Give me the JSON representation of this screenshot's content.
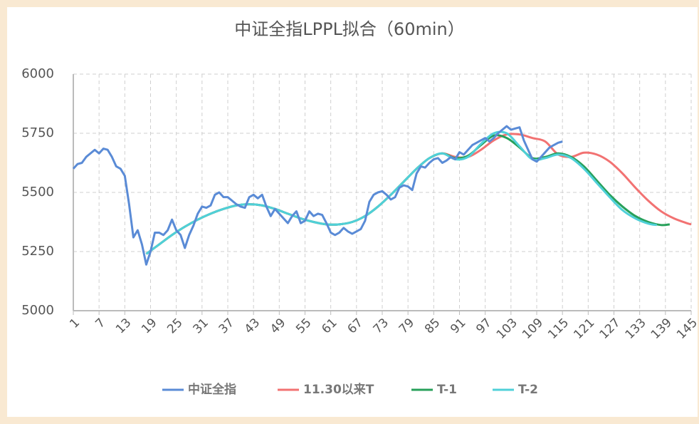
{
  "chart_data": {
    "type": "line",
    "title": "中证全指LPPL拟合（60min）",
    "xlim": [
      1,
      145
    ],
    "xticks": [
      1,
      7,
      13,
      19,
      25,
      31,
      37,
      43,
      49,
      55,
      61,
      67,
      73,
      79,
      85,
      91,
      97,
      103,
      109,
      115,
      121,
      127,
      133,
      139,
      145
    ],
    "ylim": [
      5000,
      6000
    ],
    "yticks": [
      5000,
      5250,
      5500,
      5750,
      6000
    ],
    "grid": true,
    "legend": "bottom",
    "series": [
      {
        "name": "中证全指",
        "color": "#5a8bd6",
        "x": [
          1,
          2,
          3,
          4,
          5,
          6,
          7,
          8,
          9,
          10,
          11,
          12,
          13,
          14,
          15,
          16,
          17,
          18,
          19,
          20,
          21,
          22,
          23,
          24,
          25,
          26,
          27,
          28,
          29,
          30,
          31,
          32,
          33,
          34,
          35,
          36,
          37,
          38,
          39,
          40,
          41,
          42,
          43,
          44,
          45,
          46,
          47,
          48,
          49,
          50,
          51,
          52,
          53,
          54,
          55,
          56,
          57,
          58,
          59,
          60,
          61,
          62,
          63,
          64,
          65,
          66,
          67,
          68,
          69,
          70,
          71,
          72,
          73,
          74,
          75,
          76,
          77,
          78,
          79,
          80,
          81,
          82,
          83,
          84,
          85,
          86,
          87,
          88,
          89,
          90,
          91,
          92,
          93,
          94,
          95,
          96,
          97,
          98,
          99,
          100,
          101,
          102,
          103,
          104,
          105,
          106,
          107,
          108,
          109,
          110,
          111,
          112,
          113,
          114,
          115
        ],
        "values": [
          5600,
          5620,
          5625,
          5650,
          5665,
          5680,
          5665,
          5685,
          5680,
          5650,
          5610,
          5600,
          5570,
          5450,
          5310,
          5340,
          5280,
          5195,
          5250,
          5330,
          5330,
          5320,
          5340,
          5385,
          5340,
          5320,
          5265,
          5320,
          5360,
          5410,
          5440,
          5435,
          5445,
          5490,
          5500,
          5480,
          5480,
          5465,
          5450,
          5440,
          5435,
          5480,
          5490,
          5475,
          5490,
          5440,
          5400,
          5430,
          5410,
          5390,
          5370,
          5400,
          5420,
          5370,
          5380,
          5420,
          5400,
          5410,
          5405,
          5370,
          5330,
          5320,
          5330,
          5350,
          5335,
          5325,
          5335,
          5345,
          5380,
          5460,
          5490,
          5500,
          5505,
          5490,
          5470,
          5480,
          5520,
          5530,
          5525,
          5510,
          5580,
          5610,
          5605,
          5625,
          5640,
          5645,
          5625,
          5635,
          5650,
          5640,
          5670,
          5660,
          5680,
          5700,
          5710,
          5720,
          5730,
          5715,
          5730,
          5750,
          5765,
          5780,
          5765,
          5770,
          5775,
          5720,
          5680,
          5640,
          5630,
          5650,
          5670,
          5690,
          5700,
          5710,
          5715
        ]
      },
      {
        "name": "11.30以来T",
        "color": "#f27272",
        "x": [
          18,
          21,
          24,
          27,
          30,
          33,
          36,
          39,
          42,
          45,
          48,
          51,
          54,
          57,
          60,
          63,
          66,
          69,
          72,
          75,
          78,
          81,
          84,
          87,
          90,
          93,
          96,
          99,
          102,
          105,
          108,
          111,
          114,
          117,
          120,
          123,
          126,
          129,
          132,
          135,
          138,
          141,
          144,
          145
        ],
        "values": [
          5240,
          5280,
          5320,
          5355,
          5385,
          5410,
          5430,
          5445,
          5450,
          5445,
          5430,
          5410,
          5390,
          5375,
          5365,
          5365,
          5375,
          5400,
          5440,
          5490,
          5545,
          5600,
          5645,
          5665,
          5650,
          5650,
          5680,
          5720,
          5745,
          5745,
          5730,
          5715,
          5660,
          5650,
          5668,
          5660,
          5630,
          5580,
          5520,
          5465,
          5420,
          5390,
          5370,
          5365
        ]
      },
      {
        "name": "T-1",
        "color": "#27a05a",
        "x": [
          18,
          21,
          24,
          27,
          30,
          33,
          36,
          39,
          42,
          45,
          48,
          51,
          54,
          57,
          60,
          63,
          66,
          69,
          72,
          75,
          78,
          81,
          84,
          87,
          90,
          93,
          96,
          99,
          102,
          105,
          108,
          111,
          114,
          117,
          120,
          123,
          126,
          129,
          132,
          135,
          138,
          140
        ],
        "values": [
          5240,
          5280,
          5320,
          5355,
          5385,
          5410,
          5430,
          5445,
          5450,
          5445,
          5430,
          5410,
          5390,
          5375,
          5365,
          5365,
          5375,
          5400,
          5440,
          5490,
          5545,
          5600,
          5645,
          5665,
          5645,
          5655,
          5700,
          5740,
          5730,
          5690,
          5645,
          5650,
          5665,
          5650,
          5610,
          5550,
          5490,
          5440,
          5400,
          5375,
          5362,
          5365
        ]
      },
      {
        "name": "T-2",
        "color": "#4fd0d8",
        "x": [
          18,
          21,
          24,
          27,
          30,
          33,
          36,
          39,
          42,
          45,
          48,
          51,
          54,
          57,
          60,
          63,
          66,
          69,
          72,
          75,
          78,
          81,
          84,
          87,
          90,
          93,
          96,
          99,
          102,
          105,
          108,
          111,
          114,
          117,
          120,
          123,
          126,
          129,
          132,
          135,
          137
        ],
        "values": [
          5240,
          5280,
          5320,
          5355,
          5385,
          5410,
          5430,
          5445,
          5450,
          5445,
          5430,
          5410,
          5390,
          5375,
          5365,
          5365,
          5375,
          5400,
          5440,
          5490,
          5545,
          5600,
          5645,
          5665,
          5640,
          5650,
          5705,
          5750,
          5750,
          5695,
          5640,
          5645,
          5660,
          5645,
          5600,
          5540,
          5480,
          5425,
          5390,
          5368,
          5362
        ]
      }
    ]
  }
}
